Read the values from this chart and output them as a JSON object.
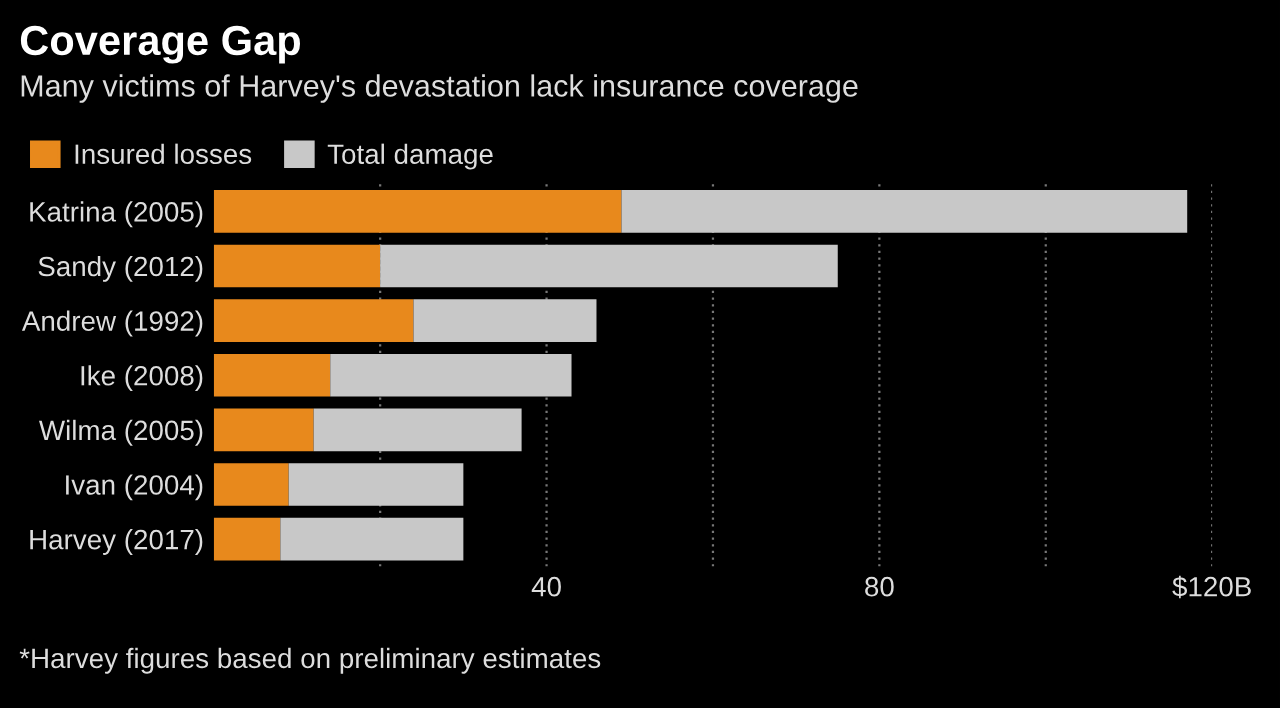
{
  "chart_data": {
    "type": "bar",
    "orientation": "horizontal",
    "stacked": true,
    "title": "Coverage Gap",
    "subtitle": "Many victims of Harvey's devastation lack insurance coverage",
    "categories": [
      "Katrina (2005)",
      "Sandy (2012)",
      "Andrew (1992)",
      "Ike (2008)",
      "Wilma (2005)",
      "Ivan (2004)",
      "Harvey (2017)"
    ],
    "series": [
      {
        "name": "Insured losses",
        "color": "#e8891c",
        "values": [
          49,
          20,
          24,
          14,
          12,
          9,
          8
        ]
      },
      {
        "name": "Total damage",
        "color": "#c8c8c8",
        "values": [
          68,
          55,
          22,
          29,
          25,
          21,
          22
        ]
      }
    ],
    "xlim": [
      0,
      120
    ],
    "xticks": [
      {
        "value": 20,
        "label": null
      },
      40,
      {
        "value": 60,
        "label": null
      },
      80,
      {
        "value": 100,
        "label": null
      },
      {
        "value": 120,
        "label": "$120B"
      }
    ],
    "grid": "x",
    "legend": "top left",
    "annotations": [
      "*Harvey figures based on preliminary estimates"
    ]
  }
}
